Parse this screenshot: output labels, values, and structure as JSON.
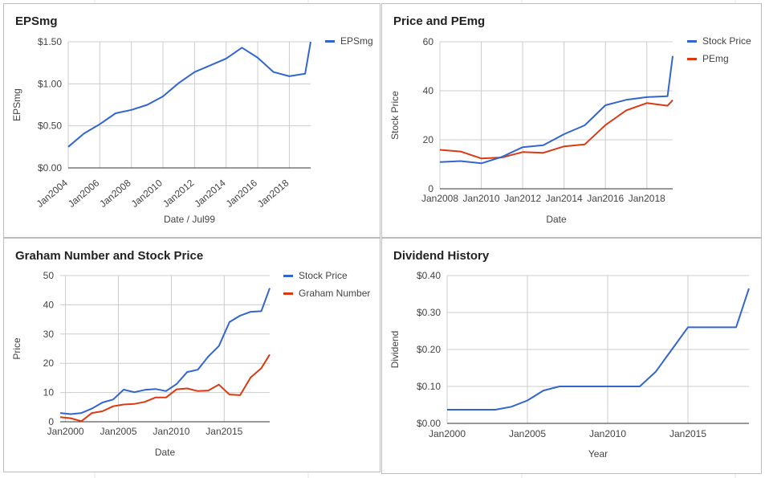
{
  "colors": {
    "blue": "#3366cc",
    "red": "#dc3912",
    "grid": "#cccccc",
    "axis": "#333333",
    "text": "#444444"
  },
  "chart_data": [
    {
      "id": "epsmg",
      "type": "line",
      "title": "EPSmg",
      "xlabel": "Date / Jul99",
      "ylabel": "EPSmg",
      "xlim": [
        2004.0,
        2019.35
      ],
      "ylim": [
        0,
        1.5
      ],
      "y_ticks": [
        "$0.00",
        "$0.50",
        "$1.00",
        "$1.50"
      ],
      "y_tick_values": [
        0,
        0.5,
        1.0,
        1.5
      ],
      "x_ticks": [
        "Jan2004",
        "Jan2006",
        "Jan2008",
        "Jan2010",
        "Jan2012",
        "Jan2014",
        "Jan2016",
        "Jan2018"
      ],
      "x_tick_values": [
        2004,
        2006,
        2008,
        2010,
        2012,
        2014,
        2016,
        2018
      ],
      "x_ticks_rotated": true,
      "grid": true,
      "legend": "right",
      "series": [
        {
          "name": "EPSmg",
          "color": "#3366cc",
          "x": [
            2004.0,
            2005.0,
            2006.0,
            2007.0,
            2008.0,
            2009.0,
            2010.0,
            2011.0,
            2012.0,
            2013.0,
            2014.0,
            2015.0,
            2016.0,
            2017.0,
            2018.0,
            2019.0,
            2019.35
          ],
          "y": [
            0.25,
            0.41,
            0.52,
            0.65,
            0.69,
            0.75,
            0.85,
            1.01,
            1.14,
            1.22,
            1.3,
            1.43,
            1.31,
            1.14,
            1.09,
            1.12,
            1.5
          ]
        }
      ]
    },
    {
      "id": "price-pemg",
      "type": "line",
      "title": "Price and PEmg",
      "xlabel": "Date",
      "ylabel": "Stock Price",
      "xlim": [
        2008.0,
        2019.25
      ],
      "ylim": [
        0,
        60
      ],
      "y_ticks": [
        "0",
        "20",
        "40",
        "60"
      ],
      "y_tick_values": [
        0,
        20,
        40,
        60
      ],
      "x_ticks": [
        "Jan2008",
        "Jan2010",
        "Jan2012",
        "Jan2014",
        "Jan2016",
        "Jan2018"
      ],
      "x_tick_values": [
        2008,
        2010,
        2012,
        2014,
        2016,
        2018
      ],
      "x_ticks_rotated": false,
      "grid": true,
      "legend": "right",
      "series": [
        {
          "name": "Stock Price",
          "color": "#3366cc",
          "x": [
            2008.0,
            2009.0,
            2010.0,
            2011.0,
            2012.0,
            2013.0,
            2014.0,
            2015.0,
            2016.0,
            2017.0,
            2018.0,
            2019.0,
            2019.25
          ],
          "y": [
            10.9,
            11.3,
            10.4,
            13.0,
            17.0,
            17.8,
            22.3,
            25.9,
            34.1,
            36.3,
            37.4,
            37.8,
            54.2
          ]
        },
        {
          "name": "PEmg",
          "color": "#dc3912",
          "x": [
            2008.0,
            2009.0,
            2010.0,
            2011.0,
            2012.0,
            2013.0,
            2014.0,
            2015.0,
            2016.0,
            2017.0,
            2018.0,
            2019.0,
            2019.25
          ],
          "y": [
            15.9,
            15.2,
            12.4,
            12.8,
            15.0,
            14.7,
            17.3,
            18.1,
            26.0,
            32.0,
            35.0,
            33.9,
            36.2
          ]
        }
      ]
    },
    {
      "id": "graham",
      "type": "line",
      "title": "Graham Number and Stock Price",
      "xlabel": "Date",
      "ylabel": "Price",
      "xlim": [
        1999.5,
        2019.3
      ],
      "ylim": [
        0,
        50
      ],
      "y_ticks": [
        "0",
        "10",
        "20",
        "30",
        "40",
        "50"
      ],
      "y_tick_values": [
        0,
        10,
        20,
        30,
        40,
        50
      ],
      "x_ticks": [
        "Jan2000",
        "Jan2005",
        "Jan2010",
        "Jan2015"
      ],
      "x_tick_values": [
        2000,
        2005,
        2010,
        2015
      ],
      "x_ticks_rotated": false,
      "grid": true,
      "legend": "right",
      "series": [
        {
          "name": "Stock Price",
          "color": "#3366cc",
          "x": [
            1999.5,
            2000.5,
            2001.5,
            2002.5,
            2003.5,
            2004.5,
            2005.5,
            2006.5,
            2007.5,
            2008.5,
            2009.5,
            2010.5,
            2011.5,
            2012.5,
            2013.5,
            2014.5,
            2015.5,
            2016.5,
            2017.5,
            2018.5,
            2019.3
          ],
          "y": [
            3.0,
            2.6,
            3.0,
            4.5,
            6.6,
            7.6,
            11.0,
            10.1,
            10.9,
            11.2,
            10.5,
            12.9,
            17.0,
            17.8,
            22.3,
            25.9,
            34.1,
            36.3,
            37.6,
            37.8,
            45.7
          ]
        },
        {
          "name": "Graham Number",
          "color": "#dc3912",
          "x": [
            1999.5,
            2000.5,
            2001.5,
            2002.5,
            2003.5,
            2004.5,
            2005.5,
            2006.5,
            2007.5,
            2008.5,
            2009.5,
            2010.5,
            2011.5,
            2012.5,
            2013.5,
            2014.5,
            2015.5,
            2016.5,
            2017.5,
            2018.5,
            2019.3
          ],
          "y": [
            1.6,
            1.2,
            0.2,
            3.0,
            3.6,
            5.3,
            5.9,
            6.1,
            6.8,
            8.3,
            8.3,
            11.1,
            11.4,
            10.5,
            10.7,
            12.7,
            9.3,
            9.1,
            15.2,
            18.3,
            23.0
          ]
        }
      ]
    },
    {
      "id": "dividend",
      "type": "line",
      "title": "Dividend History",
      "xlabel": "Year",
      "ylabel": "Dividend",
      "xlim": [
        2000,
        2018.8
      ],
      "ylim": [
        0,
        0.4
      ],
      "y_ticks": [
        "$0.00",
        "$0.10",
        "$0.20",
        "$0.30",
        "$0.40"
      ],
      "y_tick_values": [
        0,
        0.1,
        0.2,
        0.3,
        0.4
      ],
      "x_ticks": [
        "Jan2000",
        "Jan2005",
        "Jan2010",
        "Jan2015"
      ],
      "x_tick_values": [
        2000,
        2005,
        2010,
        2015
      ],
      "x_ticks_rotated": false,
      "grid": true,
      "legend": "none",
      "series": [
        {
          "name": "",
          "color": "#3366cc",
          "x": [
            2000,
            2001,
            2002,
            2003,
            2004,
            2005,
            2006,
            2007,
            2008,
            2009,
            2010,
            2011,
            2012,
            2013,
            2014,
            2015,
            2016,
            2017,
            2018,
            2018.8
          ],
          "y": [
            0.037,
            0.037,
            0.037,
            0.037,
            0.045,
            0.062,
            0.089,
            0.1,
            0.1,
            0.1,
            0.1,
            0.1,
            0.1,
            0.14,
            0.2,
            0.26,
            0.26,
            0.26,
            0.26,
            0.365
          ]
        }
      ]
    }
  ]
}
